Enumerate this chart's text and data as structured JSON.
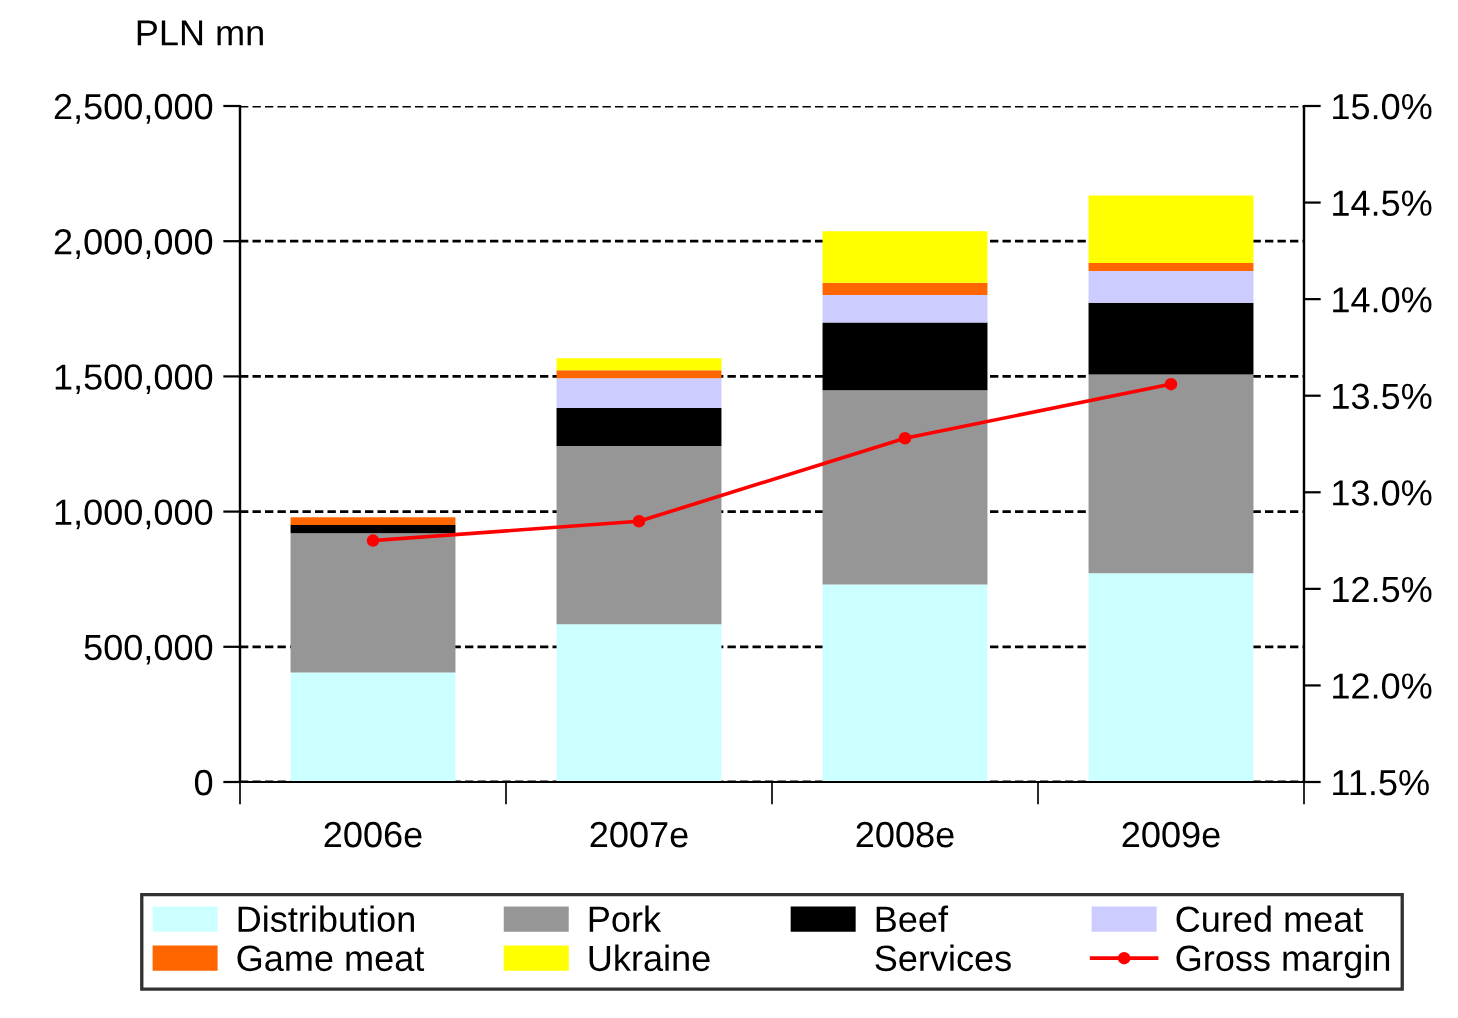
{
  "chart_data": {
    "type": "bar",
    "stacked": true,
    "ylabel": "PLN mn",
    "categories": [
      "2006e",
      "2007e",
      "2008e",
      "2009e"
    ],
    "series": [
      {
        "name": "Distribution",
        "color": "#ccffff",
        "values": [
          405000,
          583000,
          730000,
          772000
        ]
      },
      {
        "name": "Pork",
        "color": "#969696",
        "values": [
          515000,
          660000,
          719000,
          735000
        ]
      },
      {
        "name": "Beef",
        "color": "#000000",
        "values": [
          30000,
          140000,
          250000,
          265000
        ]
      },
      {
        "name": "Cured meat",
        "color": "#ccccff",
        "values": [
          0,
          110000,
          102000,
          118000
        ]
      },
      {
        "name": "Game meat",
        "color": "#ff6600",
        "values": [
          29000,
          30000,
          45000,
          29000
        ]
      },
      {
        "name": "Ukraine",
        "color": "#ffff00",
        "values": [
          0,
          44000,
          191000,
          250000
        ]
      },
      {
        "name": "Services",
        "values": [
          null,
          null,
          null,
          null
        ]
      },
      {
        "name": "Gross margin",
        "type": "line",
        "axis": "y2",
        "color": "#ff0000",
        "marker": "circle",
        "values": [
          12.75,
          12.85,
          13.28,
          13.56
        ]
      }
    ],
    "ylim": [
      0,
      2500000
    ],
    "yticks": [
      {
        "value": 0,
        "label": "0"
      },
      {
        "value": 500000,
        "label": "500,000"
      },
      {
        "value": 1000000,
        "label": "1,000,000"
      },
      {
        "value": 1500000,
        "label": "1,500,000"
      },
      {
        "value": 2000000,
        "label": "2,000,000"
      },
      {
        "value": 2500000,
        "label": "2,500,000"
      }
    ],
    "y2lim": [
      11.5,
      15.0
    ],
    "y2ticks": [
      {
        "value": 11.5,
        "label": "11.5%"
      },
      {
        "value": 12.0,
        "label": "12.0%"
      },
      {
        "value": 12.5,
        "label": "12.5%"
      },
      {
        "value": 13.0,
        "label": "13.0%"
      },
      {
        "value": 13.5,
        "label": "13.5%"
      },
      {
        "value": 14.0,
        "label": "14.0%"
      },
      {
        "value": 14.5,
        "label": "14.5%"
      },
      {
        "value": 15.0,
        "label": "15.0%"
      }
    ],
    "grid": "y",
    "legend": "bottom"
  }
}
